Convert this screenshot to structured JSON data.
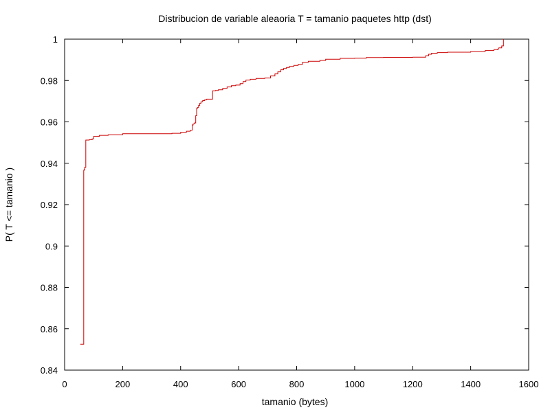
{
  "chart_data": {
    "type": "line",
    "title": "Distribucion de variable aleaoria T = tamanio paquetes http (dst)",
    "xlabel": "tamanio (bytes)",
    "ylabel": "P( T <= tamanio )",
    "xlim": [
      0,
      1600
    ],
    "ylim": [
      0.84,
      1.0
    ],
    "x_ticks": [
      "0",
      "200",
      "400",
      "600",
      "800",
      "1000",
      "1200",
      "1400",
      "1600"
    ],
    "y_ticks": [
      "0.84",
      "0.86",
      "0.88",
      "0.9",
      "0.92",
      "0.94",
      "0.96",
      "0.98",
      "1"
    ],
    "grid": false,
    "legend": false,
    "line_color": "#cc0000",
    "series": [
      {
        "step": "post",
        "x": [
          54,
          66,
          67,
          69,
          73,
          78,
          85,
          95,
          100,
          120,
          150,
          200,
          260,
          370,
          400,
          420,
          433,
          440,
          443,
          448,
          452,
          455,
          458,
          462,
          466,
          470,
          476,
          483,
          490,
          500,
          510,
          520,
          530,
          545,
          560,
          575,
          590,
          605,
          615,
          625,
          640,
          660,
          690,
          710,
          725,
          735,
          745,
          755,
          765,
          775,
          790,
          805,
          820,
          840,
          880,
          900,
          950,
          1000,
          1040,
          1100,
          1200,
          1245,
          1255,
          1265,
          1285,
          1320,
          1400,
          1450,
          1480,
          1492,
          1497,
          1507,
          1513
        ],
        "y": [
          0.8525,
          0.9365,
          0.937,
          0.938,
          0.9512,
          0.9512,
          0.9514,
          0.9518,
          0.953,
          0.9535,
          0.9538,
          0.9543,
          0.9543,
          0.9545,
          0.955,
          0.9555,
          0.956,
          0.9585,
          0.959,
          0.9595,
          0.963,
          0.9665,
          0.967,
          0.968,
          0.969,
          0.9697,
          0.9703,
          0.9707,
          0.971,
          0.971,
          0.975,
          0.9752,
          0.9755,
          0.9762,
          0.9769,
          0.9775,
          0.9778,
          0.9785,
          0.9795,
          0.9802,
          0.9806,
          0.981,
          0.9812,
          0.9822,
          0.9832,
          0.9842,
          0.9852,
          0.9858,
          0.9863,
          0.9868,
          0.9873,
          0.9878,
          0.9888,
          0.9893,
          0.9897,
          0.9903,
          0.9907,
          0.9908,
          0.9911,
          0.9912,
          0.9913,
          0.992,
          0.9927,
          0.9932,
          0.9935,
          0.9937,
          0.994,
          0.9945,
          0.995,
          0.9952,
          0.9958,
          0.9967,
          1.0
        ]
      }
    ]
  }
}
